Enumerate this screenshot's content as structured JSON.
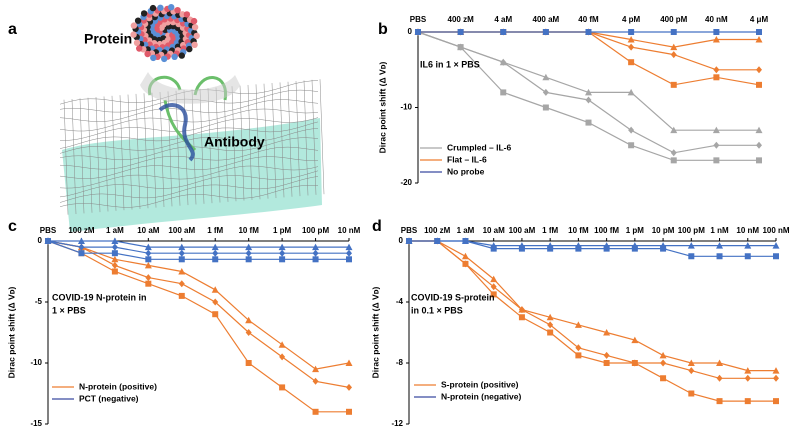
{
  "panel_a": {
    "label": "a",
    "protein": "Protein",
    "antibody": "Antibody"
  },
  "chart_data": [
    {
      "type": "line",
      "panel": "b",
      "y_label": "Dirac point shift (Δ Vᴅ)",
      "annotation": [
        "IL6 in 1 × PBS"
      ],
      "categories": [
        "PBS",
        "400 zM",
        "4 aM",
        "400 aM",
        "40 fM",
        "4 pM",
        "400 pM",
        "40 nM",
        "4 μM"
      ],
      "ylim": [
        -20,
        0
      ],
      "yticks": [
        0,
        -10,
        -20
      ],
      "series": [
        {
          "color": "#a6a6a6",
          "marker": "triangle",
          "values": [
            0,
            -2,
            -4,
            -6,
            -8,
            -8,
            -13,
            -13,
            -13
          ]
        },
        {
          "color": "#a6a6a6",
          "marker": "diamond",
          "values": [
            0,
            -2,
            -4,
            -8,
            -9,
            -13,
            -16,
            -15,
            -15
          ]
        },
        {
          "color": "#a6a6a6",
          "marker": "square",
          "values": [
            0,
            -2,
            -8,
            -10,
            -12,
            -15,
            -17,
            -17,
            -17
          ]
        },
        {
          "color": "#ed7d31",
          "marker": "triangle",
          "values": [
            0,
            0,
            0,
            0,
            0,
            -1,
            -2,
            -1,
            -1
          ]
        },
        {
          "color": "#ed7d31",
          "marker": "diamond",
          "values": [
            0,
            0,
            0,
            0,
            0,
            -2,
            -3,
            -5,
            -5
          ]
        },
        {
          "color": "#ed7d31",
          "marker": "square",
          "values": [
            0,
            0,
            0,
            0,
            0,
            -4,
            -7,
            -6,
            -7
          ]
        },
        {
          "color": "#4472c4",
          "marker": "square",
          "values": [
            0,
            0,
            0,
            0,
            0,
            0,
            0,
            0,
            0
          ]
        }
      ],
      "legend": [
        {
          "label": "Crumpled – IL-6",
          "color": "#a6a6a6"
        },
        {
          "label": "Flat – IL-6",
          "color": "#ed7d31"
        },
        {
          "label": "No probe",
          "color": "#3b4aa0"
        }
      ]
    },
    {
      "type": "line",
      "panel": "c",
      "y_label": "Dirac point shift (Δ Vᴅ)",
      "annotation": [
        "COVID-19 N-protein in",
        "1 × PBS"
      ],
      "categories": [
        "PBS",
        "100 zM",
        "1 aM",
        "10 aM",
        "100 aM",
        "1 fM",
        "10 fM",
        "1 pM",
        "100 pM",
        "10 nM"
      ],
      "ylim": [
        -15,
        0
      ],
      "yticks": [
        0,
        -5,
        -10,
        -15
      ],
      "series": [
        {
          "color": "#ed7d31",
          "marker": "triangle",
          "values": [
            0,
            -0.5,
            -1.5,
            -2,
            -2.5,
            -4,
            -6.5,
            -8.5,
            -10.5,
            -10
          ]
        },
        {
          "color": "#ed7d31",
          "marker": "diamond",
          "values": [
            0,
            -0.5,
            -2,
            -3,
            -3.5,
            -5,
            -7.5,
            -9.5,
            -11.5,
            -12
          ]
        },
        {
          "color": "#ed7d31",
          "marker": "square",
          "values": [
            0,
            -1,
            -2.5,
            -3.5,
            -4.5,
            -6,
            -10,
            -12,
            -14,
            -14
          ]
        },
        {
          "color": "#4472c4",
          "marker": "triangle",
          "values": [
            0,
            0,
            0,
            -0.5,
            -0.5,
            -0.5,
            -0.5,
            -0.5,
            -0.5,
            -0.5
          ]
        },
        {
          "color": "#4472c4",
          "marker": "diamond",
          "values": [
            0,
            -0.5,
            -0.5,
            -1,
            -1,
            -1,
            -1,
            -1,
            -1,
            -1
          ]
        },
        {
          "color": "#4472c4",
          "marker": "square",
          "values": [
            0,
            -1,
            -1,
            -1.5,
            -1.5,
            -1.5,
            -1.5,
            -1.5,
            -1.5,
            -1.5
          ]
        }
      ],
      "legend": [
        {
          "label": "N-protein (positive)",
          "color": "#ed7d31"
        },
        {
          "label": "PCT (negative)",
          "color": "#3b4aa0"
        }
      ]
    },
    {
      "type": "line",
      "panel": "d",
      "y_label": "Dirac point shift (Δ Vᴅ)",
      "annotation": [
        "COVID-19 S-protein",
        "in 0.1 × PBS"
      ],
      "categories": [
        "PBS",
        "100 zM",
        "1 aM",
        "10 aM",
        "100 aM",
        "1 fM",
        "10 fM",
        "100 fM",
        "1 pM",
        "10 pM",
        "100 pM",
        "1 nM",
        "10 nM",
        "100 nM"
      ],
      "ylim": [
        -12,
        0
      ],
      "yticks": [
        0,
        -4,
        -8,
        -12
      ],
      "series": [
        {
          "color": "#ed7d31",
          "marker": "triangle",
          "values": [
            0,
            0,
            -1,
            -2.5,
            -4.5,
            -5,
            -5.5,
            -6,
            -6.5,
            -7.5,
            -8,
            -8,
            -8.5,
            -8.5
          ]
        },
        {
          "color": "#ed7d31",
          "marker": "diamond",
          "values": [
            0,
            0,
            -1.5,
            -3,
            -4.5,
            -5.5,
            -7,
            -7.5,
            -8,
            -8,
            -8.5,
            -9,
            -9,
            -9
          ]
        },
        {
          "color": "#ed7d31",
          "marker": "square",
          "values": [
            0,
            0,
            -1.5,
            -3.5,
            -5,
            -6,
            -7.5,
            -8,
            -8,
            -9,
            -10,
            -10.5,
            -10.5,
            -10.5
          ]
        },
        {
          "color": "#4472c4",
          "marker": "triangle",
          "values": [
            0,
            0,
            0,
            -0.3,
            -0.3,
            -0.3,
            -0.3,
            -0.3,
            -0.3,
            -0.3,
            -0.3,
            -0.3,
            -0.3,
            -0.3
          ]
        },
        {
          "color": "#4472c4",
          "marker": "square",
          "values": [
            0,
            0,
            0,
            -0.5,
            -0.5,
            -0.5,
            -0.5,
            -0.5,
            -0.5,
            -0.5,
            -1,
            -1,
            -1,
            -1
          ]
        }
      ],
      "legend": [
        {
          "label": "S-protein (positive)",
          "color": "#ed7d31"
        },
        {
          "label": "N-protein (negative)",
          "color": "#3b4aa0"
        }
      ]
    }
  ]
}
